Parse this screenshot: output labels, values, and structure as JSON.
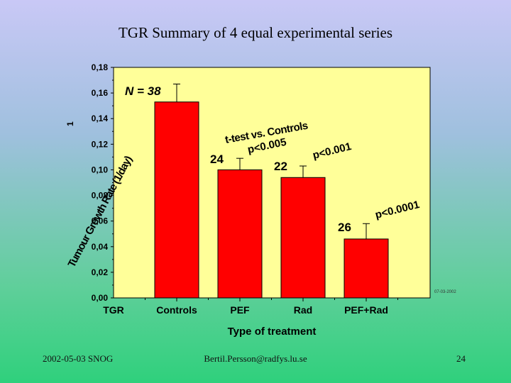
{
  "slide": {
    "title": "TGR Summary of 4 equal experimental series",
    "footer_date": "2002-05-03 SNOG",
    "footer_email": "Bertil.Persson@radfys.lu.se",
    "page_number": "24"
  },
  "chart_data": {
    "type": "bar",
    "title": "",
    "xlabel": "Type of treatment",
    "ylabel": "Tumour Growth Rate (1/day)",
    "ylabel_unit": "1",
    "categories": [
      "Controls",
      "PEF",
      "Rad",
      "PEF+Rad"
    ],
    "category_axis_first_label": "TGR",
    "values": [
      0.153,
      0.1,
      0.094,
      0.046
    ],
    "error_upper": [
      0.167,
      0.109,
      0.103,
      0.058
    ],
    "ylim": [
      0,
      0.18
    ],
    "yticks": [
      "0,00",
      "0,02",
      "0,04",
      "0,06",
      "0,08",
      "0,10",
      "0,12",
      "0,14",
      "0,16",
      "0,18"
    ],
    "n_labels": [
      "N = 38",
      "24",
      "22",
      "26"
    ],
    "annotations": [
      "t-test vs. Controls",
      "p<0.005",
      "p<0.001",
      "p<0.0001"
    ],
    "side_note": "07-03-2002",
    "colors": {
      "bar": "#ff0000",
      "plot_bg": "#ffff99",
      "frame": "#000000"
    },
    "grid": false
  }
}
